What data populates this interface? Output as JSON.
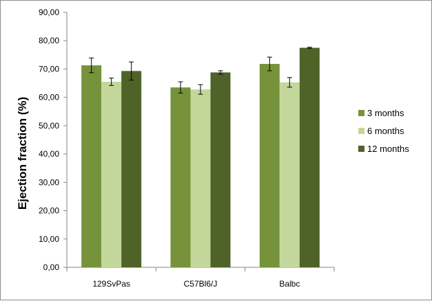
{
  "chart_data": {
    "type": "bar",
    "title": "",
    "xlabel": "",
    "ylabel": "Ejection fraction (%)",
    "ylim": [
      0,
      90
    ],
    "ytick_labels": [
      "0,00",
      "10,00",
      "20,00",
      "30,00",
      "40,00",
      "50,00",
      "60,00",
      "70,00",
      "80,00",
      "90,00"
    ],
    "categories": [
      "129SvPas",
      "C57Bl6/J",
      "Balbc"
    ],
    "grid": false,
    "legend_position": "right",
    "series": [
      {
        "name": "3 months",
        "color": "#76933c",
        "values": [
          71.3,
          63.5,
          71.8
        ],
        "errors": [
          2.6,
          2.0,
          2.4
        ]
      },
      {
        "name": "6 months",
        "color": "#c4d79b",
        "values": [
          65.5,
          62.8,
          65.3
        ],
        "errors": [
          1.3,
          1.7,
          1.7
        ]
      },
      {
        "name": "12 months",
        "color": "#4f6228",
        "values": [
          69.3,
          68.8,
          77.5
        ],
        "errors": [
          3.2,
          0.6,
          0.2
        ]
      }
    ]
  }
}
